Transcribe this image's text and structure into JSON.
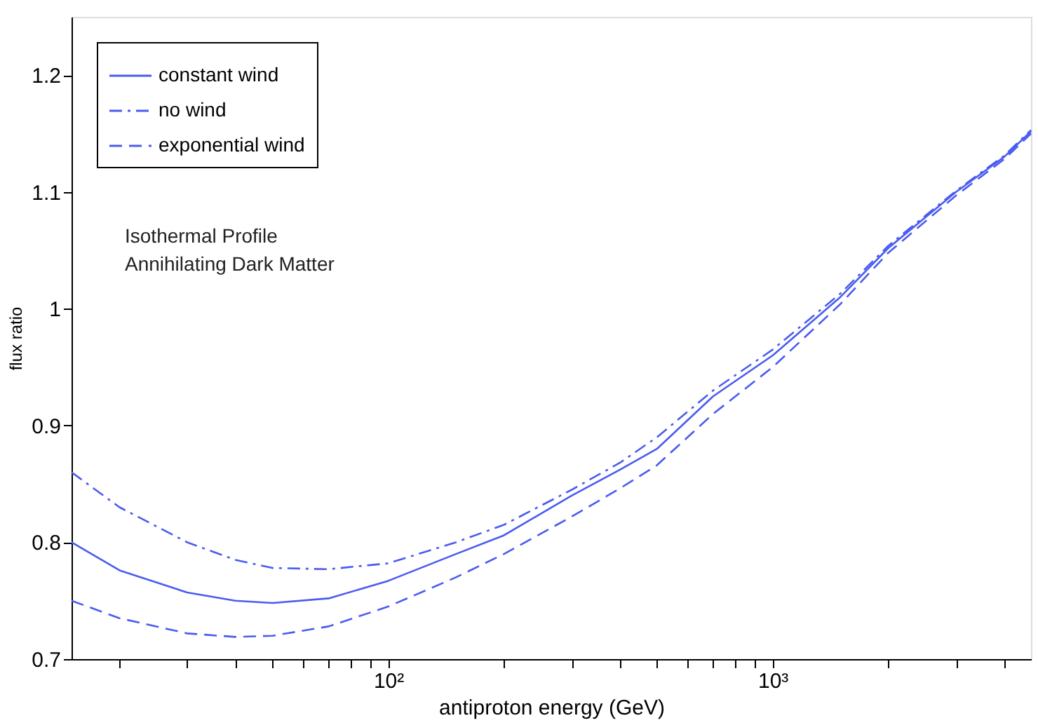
{
  "chart_data": {
    "type": "line",
    "xlabel": "antiproton energy (GeV)",
    "ylabel": "flux ratio",
    "log": "x",
    "xlim": [
      15,
      4700
    ],
    "ylim": [
      0.7,
      1.25
    ],
    "xticks": [
      {
        "value": 20,
        "label": null
      },
      {
        "value": 30,
        "label": null
      },
      {
        "value": 40,
        "label": null
      },
      {
        "value": 50,
        "label": null
      },
      {
        "value": 60,
        "label": null
      },
      {
        "value": 70,
        "label": null
      },
      {
        "value": 80,
        "label": null
      },
      {
        "value": 90,
        "label": null
      },
      {
        "value": 100,
        "label": "10²"
      },
      {
        "value": 200,
        "label": null
      },
      {
        "value": 300,
        "label": null
      },
      {
        "value": 400,
        "label": null
      },
      {
        "value": 500,
        "label": null
      },
      {
        "value": 600,
        "label": null
      },
      {
        "value": 700,
        "label": null
      },
      {
        "value": 800,
        "label": null
      },
      {
        "value": 900,
        "label": null
      },
      {
        "value": 1000,
        "label": "10³"
      },
      {
        "value": 2000,
        "label": null
      },
      {
        "value": 3000,
        "label": null
      },
      {
        "value": 4000,
        "label": null
      }
    ],
    "yticks": [
      0.7,
      0.8,
      0.9,
      1,
      1.1,
      1.2
    ],
    "grid": false,
    "legend": "top left",
    "marker": "none",
    "annotations": [
      "Isothermal Profile",
      "Annihilating Dark Matter"
    ],
    "x": [
      15,
      20,
      30,
      40,
      50,
      70,
      100,
      150,
      200,
      300,
      400,
      500,
      700,
      1000,
      1500,
      2000,
      3000,
      4000,
      4700
    ],
    "series": [
      {
        "name": "constant wind",
        "color": "#4a5cf0",
        "line_style": "solid",
        "values": [
          0.8,
          0.776,
          0.757,
          0.75,
          0.748,
          0.752,
          0.767,
          0.79,
          0.806,
          0.84,
          0.862,
          0.88,
          0.925,
          0.96,
          1.01,
          1.052,
          1.1,
          1.13,
          1.152
        ]
      },
      {
        "name": "no wind",
        "color": "#4a5cf0",
        "line_style": "dashdot",
        "values": [
          0.86,
          0.83,
          0.8,
          0.785,
          0.778,
          0.777,
          0.782,
          0.8,
          0.815,
          0.845,
          0.868,
          0.89,
          0.93,
          0.965,
          1.013,
          1.054,
          1.101,
          1.131,
          1.153
        ]
      },
      {
        "name": "exponential wind",
        "color": "#4a5cf0",
        "line_style": "dashed",
        "values": [
          0.75,
          0.735,
          0.722,
          0.719,
          0.72,
          0.728,
          0.745,
          0.77,
          0.79,
          0.822,
          0.846,
          0.866,
          0.91,
          0.95,
          1.004,
          1.048,
          1.097,
          1.128,
          1.15
        ]
      }
    ]
  }
}
